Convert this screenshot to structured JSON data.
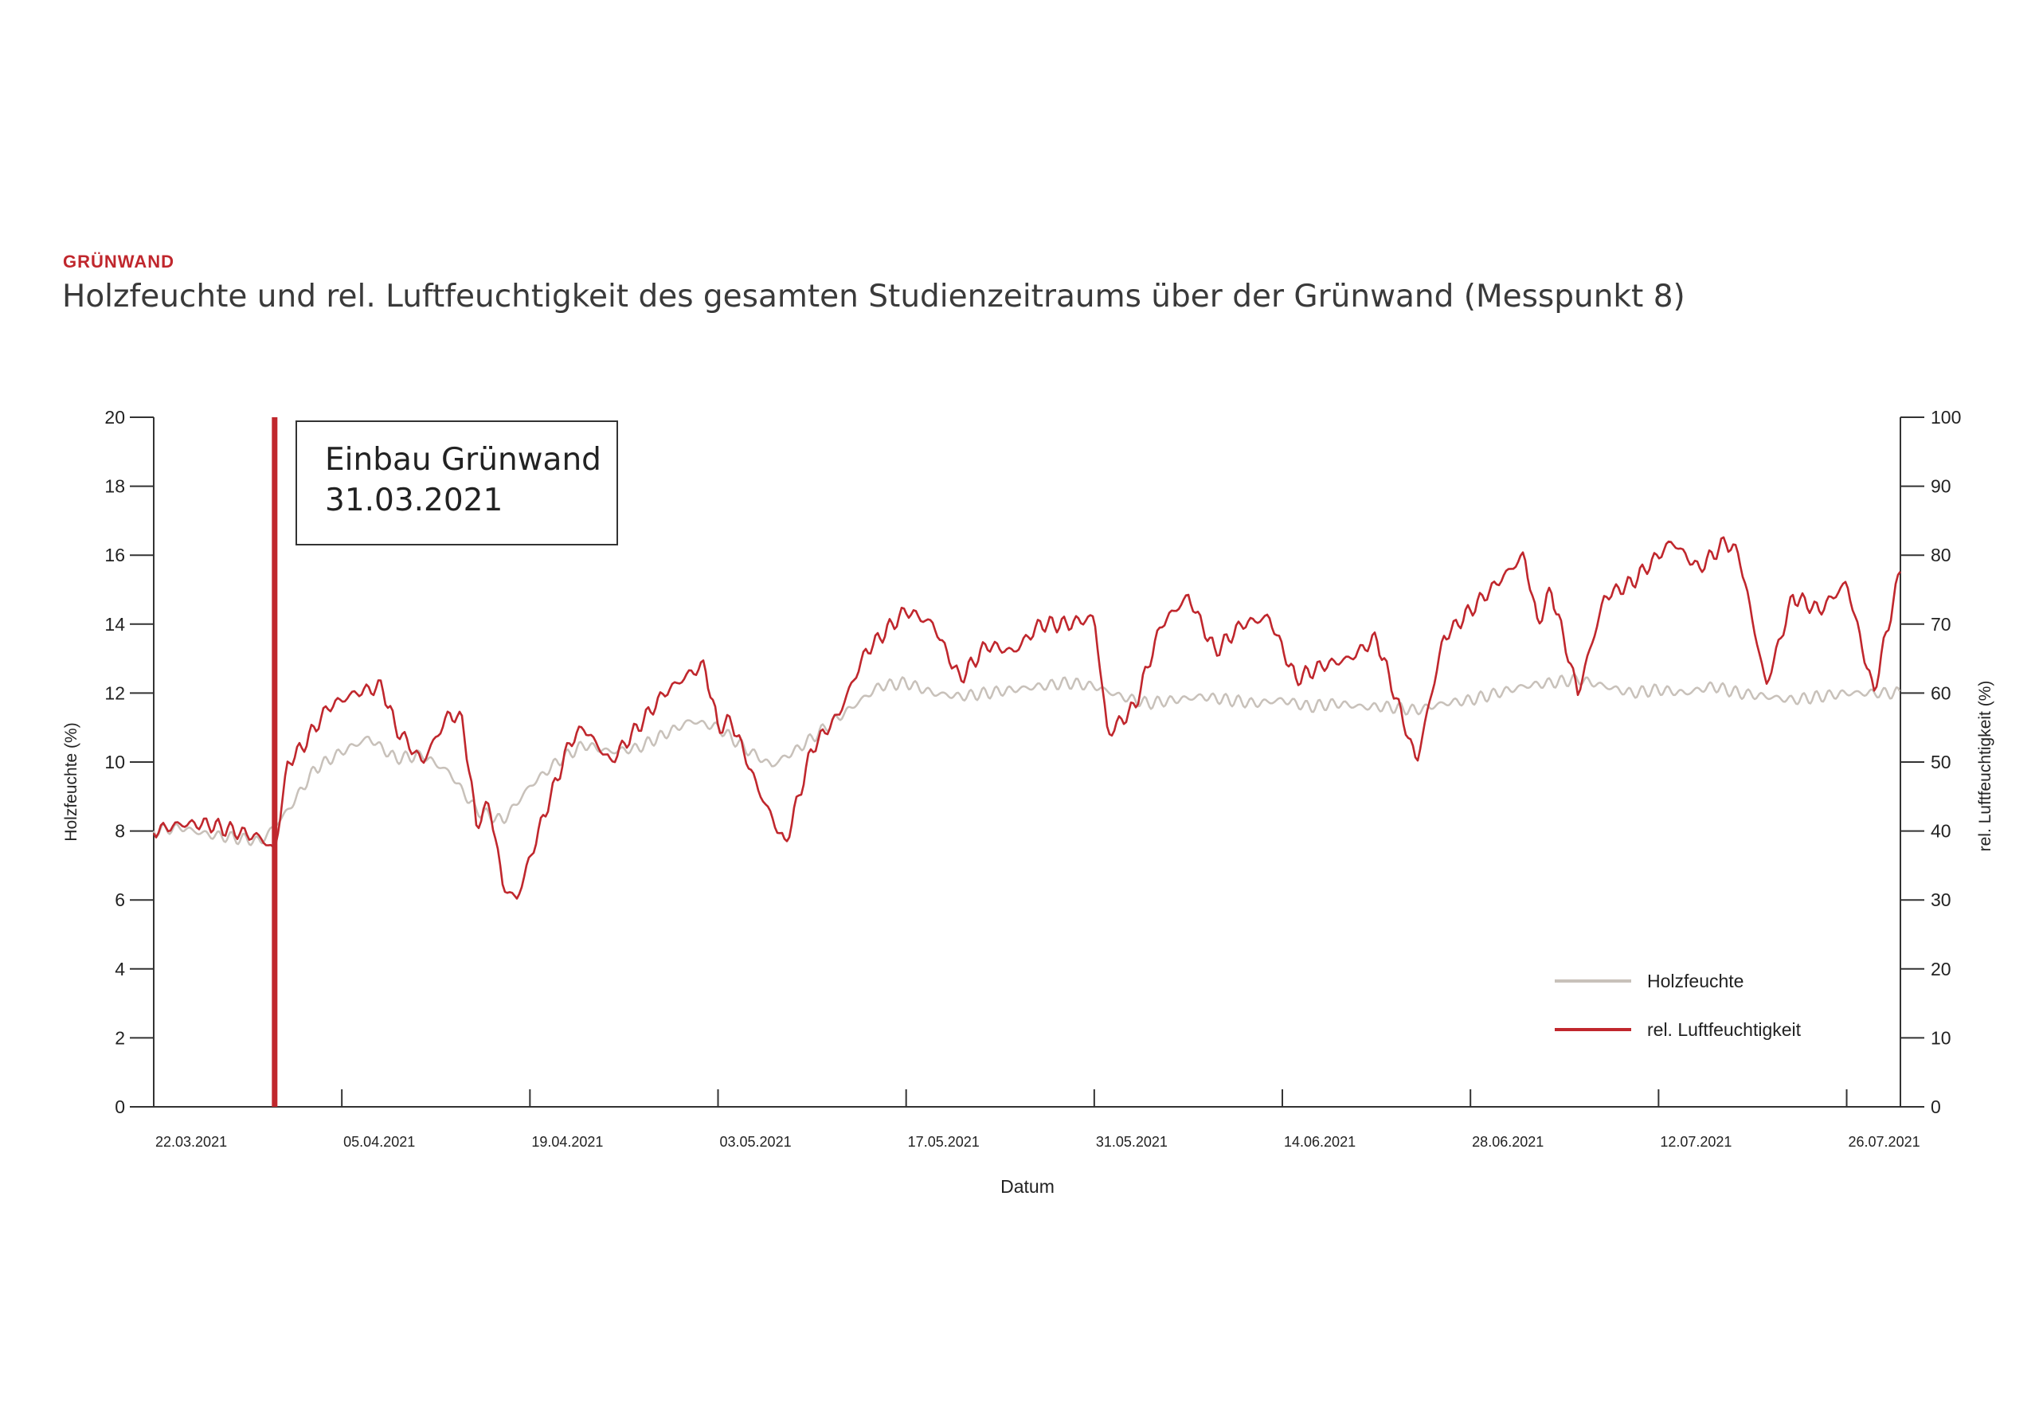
{
  "header": {
    "kicker": "GRÜNWAND",
    "title": "Holzfeuchte und rel. Luftfeuchtigkeit des gesamten Studienzeitraums über der Grünwand (Messpunkt 8)"
  },
  "colors": {
    "holzfeuchte": "#c8c1ba",
    "luftfeuchte": "#c0272d",
    "axis": "#333333"
  },
  "chart_data": {
    "type": "line",
    "title": "Holzfeuchte und rel. Luftfeuchtigkeit des gesamten Studienzeitraums über der Grünwand (Messpunkt 8)",
    "xlabel": "Datum",
    "ylabel_left": "Holzfeuchte (%)",
    "ylabel_right": "rel. Luftfeuchtigkeit (%)",
    "x_range": [
      "2021-03-22",
      "2021-07-30"
    ],
    "x_ticks": [
      "22.03.2021",
      "05.04.2021",
      "19.04.2021",
      "03.05.2021",
      "17.05.2021",
      "31.05.2021",
      "14.06.2021",
      "28.06.2021",
      "12.07.2021",
      "26.07.2021"
    ],
    "ylim_left": [
      0,
      20
    ],
    "yticks_left": [
      "0",
      "2",
      "4",
      "6",
      "8",
      "10",
      "12",
      "14",
      "16",
      "18",
      "20"
    ],
    "ylim_right": [
      0,
      100
    ],
    "yticks_right": [
      "0",
      "10",
      "20",
      "30",
      "40",
      "50",
      "60",
      "70",
      "80",
      "90",
      "100"
    ],
    "legend_placement": "bottom-right",
    "annotation": {
      "date": "2021-03-31",
      "line1": "Einbau Grünwand",
      "line2": "31.03.2021"
    },
    "series": [
      {
        "name": "Holzfeuchte",
        "axis": "left",
        "x": [
          "2021-03-22",
          "2021-03-24",
          "2021-03-26",
          "2021-03-28",
          "2021-03-30",
          "2021-04-01",
          "2021-04-03",
          "2021-04-05",
          "2021-04-07",
          "2021-04-09",
          "2021-04-11",
          "2021-04-13",
          "2021-04-15",
          "2021-04-17",
          "2021-04-19",
          "2021-04-21",
          "2021-04-23",
          "2021-04-25",
          "2021-04-27",
          "2021-04-29",
          "2021-05-01",
          "2021-05-03",
          "2021-05-05",
          "2021-05-07",
          "2021-05-09",
          "2021-05-11",
          "2021-05-13",
          "2021-05-15",
          "2021-05-17",
          "2021-05-19",
          "2021-05-21",
          "2021-05-23",
          "2021-05-25",
          "2021-05-27",
          "2021-05-29",
          "2021-05-31",
          "2021-06-02",
          "2021-06-04",
          "2021-06-06",
          "2021-06-08",
          "2021-06-10",
          "2021-06-12",
          "2021-06-14",
          "2021-06-16",
          "2021-06-18",
          "2021-06-20",
          "2021-06-22",
          "2021-06-24",
          "2021-06-26",
          "2021-06-28",
          "2021-06-30",
          "2021-07-02",
          "2021-07-04",
          "2021-07-06",
          "2021-07-08",
          "2021-07-10",
          "2021-07-12",
          "2021-07-14",
          "2021-07-16",
          "2021-07-18",
          "2021-07-20",
          "2021-07-22",
          "2021-07-24",
          "2021-07-26",
          "2021-07-28",
          "2021-07-30"
        ],
        "y": [
          8.0,
          8.1,
          7.9,
          7.8,
          7.7,
          8.6,
          9.8,
          10.3,
          10.7,
          10.1,
          10.2,
          9.7,
          8.6,
          8.3,
          9.3,
          10.0,
          10.5,
          10.3,
          10.4,
          10.8,
          11.2,
          11.0,
          10.4,
          9.9,
          10.4,
          11.0,
          11.6,
          12.2,
          12.3,
          12.0,
          11.9,
          12.0,
          12.1,
          12.2,
          12.3,
          12.2,
          11.9,
          11.7,
          11.8,
          11.9,
          11.8,
          11.7,
          11.8,
          11.6,
          11.7,
          11.6,
          11.6,
          11.5,
          11.7,
          11.8,
          12.0,
          12.2,
          12.3,
          12.4,
          12.2,
          12.0,
          12.1,
          12.0,
          12.2,
          12.0,
          11.9,
          11.8,
          11.9,
          12.0,
          12.0,
          12.0
        ]
      },
      {
        "name": "rel. Luftfeuchtigkeit",
        "axis": "right",
        "x": [
          "2021-03-22",
          "2021-03-24",
          "2021-03-26",
          "2021-03-28",
          "2021-03-30",
          "2021-03-31",
          "2021-04-01",
          "2021-04-02",
          "2021-04-04",
          "2021-04-06",
          "2021-04-08",
          "2021-04-09",
          "2021-04-11",
          "2021-04-13",
          "2021-04-14",
          "2021-04-15",
          "2021-04-16",
          "2021-04-17",
          "2021-04-18",
          "2021-04-20",
          "2021-04-22",
          "2021-04-23",
          "2021-04-25",
          "2021-04-27",
          "2021-04-29",
          "2021-05-01",
          "2021-05-02",
          "2021-05-03",
          "2021-05-04",
          "2021-05-06",
          "2021-05-08",
          "2021-05-10",
          "2021-05-12",
          "2021-05-14",
          "2021-05-16",
          "2021-05-17",
          "2021-05-19",
          "2021-05-21",
          "2021-05-23",
          "2021-05-25",
          "2021-05-27",
          "2021-05-29",
          "2021-05-31",
          "2021-06-01",
          "2021-06-03",
          "2021-06-05",
          "2021-06-07",
          "2021-06-09",
          "2021-06-11",
          "2021-06-13",
          "2021-06-15",
          "2021-06-17",
          "2021-06-19",
          "2021-06-21",
          "2021-06-23",
          "2021-06-24",
          "2021-06-26",
          "2021-06-28",
          "2021-06-30",
          "2021-07-02",
          "2021-07-03",
          "2021-07-04",
          "2021-07-06",
          "2021-07-08",
          "2021-07-10",
          "2021-07-12",
          "2021-07-13",
          "2021-07-15",
          "2021-07-17",
          "2021-07-18",
          "2021-07-20",
          "2021-07-22",
          "2021-07-24",
          "2021-07-26",
          "2021-07-28",
          "2021-07-30"
        ],
        "y": [
          40,
          41,
          41,
          40,
          39,
          37,
          50,
          52,
          58,
          60,
          61,
          55,
          50,
          57,
          56,
          41,
          44,
          32,
          30,
          42,
          53,
          55,
          50,
          55,
          60,
          63,
          64,
          55,
          56,
          46,
          38,
          52,
          57,
          66,
          70,
          72,
          70,
          62,
          67,
          66,
          70,
          70,
          71,
          54,
          58,
          70,
          74,
          66,
          70,
          71,
          62,
          64,
          65,
          68,
          56,
          50,
          68,
          72,
          76,
          80,
          70,
          75,
          60,
          74,
          76,
          80,
          82,
          78,
          82,
          80,
          61,
          74,
          72,
          76,
          60,
          78
        ]
      }
    ]
  }
}
